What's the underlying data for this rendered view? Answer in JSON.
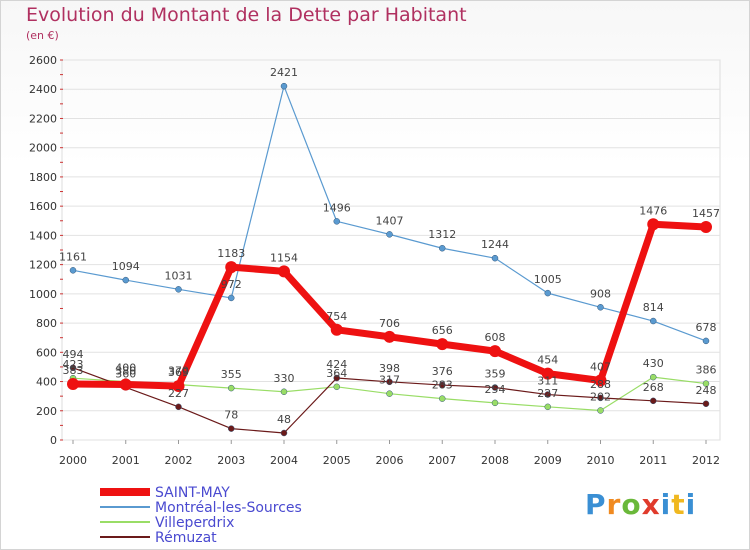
{
  "title": "Evolution du Montant de la Dette par Habitant",
  "subtitle": "(en €)",
  "logo_text": "Proxiti",
  "chart_data": {
    "type": "line",
    "title": "Evolution du Montant de la Dette par Habitant",
    "ylabel": "(en €)",
    "xlabel": "",
    "x": [
      "2000",
      "2001",
      "2002",
      "2003",
      "2004",
      "2005",
      "2006",
      "2007",
      "2008",
      "2009",
      "2010",
      "2011",
      "2012"
    ],
    "ylim": [
      0,
      2600
    ],
    "yticks": [
      0,
      200,
      400,
      600,
      800,
      1000,
      1200,
      1400,
      1600,
      1800,
      2000,
      2200,
      2400,
      2600
    ],
    "grid": "horizontal",
    "legend_position": "bottom-left",
    "series": [
      {
        "name": "Montréal-les-Sources",
        "color": "#5a9ad0",
        "values": [
          1161,
          1094,
          1031,
          972,
          2421,
          1496,
          1407,
          1312,
          1244,
          1005,
          908,
          814,
          678
        ],
        "labels": [
          "1161",
          "1094",
          "1031",
          "972",
          "2421",
          "1496",
          "1407",
          "1312",
          "1244",
          "1005",
          "908",
          "814",
          "678"
        ]
      },
      {
        "name": "Villeperdrix",
        "color": "#99dd66",
        "values": [
          423,
          400,
          379,
          355,
          330,
          364,
          317,
          283,
          254,
          227,
          202,
          430,
          386
        ],
        "labels": [
          "423",
          "400",
          "379",
          "355",
          "330",
          "364",
          "317",
          "283",
          "254",
          "227",
          "202",
          "430",
          "386"
        ]
      },
      {
        "name": "Rémuzat",
        "color": "#6b1a1a",
        "values": [
          494,
          360,
          227,
          78,
          48,
          424,
          398,
          376,
          359,
          311,
          288,
          268,
          248
        ],
        "labels": [
          "494",
          "360",
          "227",
          "78",
          "48",
          "424",
          "398",
          "376",
          "359",
          "311",
          "288",
          "268",
          "248"
        ]
      },
      {
        "name": "SAINT-MAY",
        "color": "#ee1111",
        "values": [
          383,
          380,
          369,
          1183,
          1154,
          754,
          706,
          656,
          608,
          454,
          407,
          1476,
          1457
        ],
        "labels": [
          "383",
          "380",
          "369",
          "1183",
          "1154",
          "754",
          "706",
          "656",
          "608",
          "454",
          "407",
          "1476",
          "1457"
        ]
      }
    ],
    "legend": [
      "SAINT-MAY",
      "Montréal-les-Sources",
      "Villeperdrix",
      "Rémuzat"
    ]
  }
}
